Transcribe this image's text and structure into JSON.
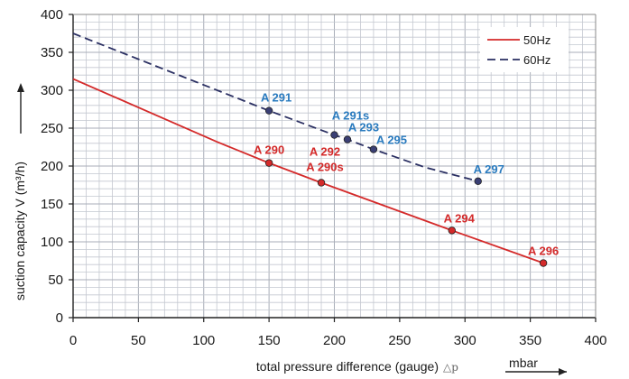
{
  "chart_data": {
    "type": "line",
    "xlabel": "total pressure difference (gauge)",
    "xlabel_symbol": "△p",
    "xunit": "mbar",
    "ylabel": "suction capacity V (m³/h)",
    "xlim": [
      0,
      400
    ],
    "ylim": [
      0,
      400
    ],
    "x_ticks": [
      0,
      50,
      100,
      150,
      200,
      250,
      300,
      350,
      400
    ],
    "y_ticks": [
      0,
      50,
      100,
      150,
      200,
      250,
      300,
      350,
      400
    ],
    "x_tick_labels": [
      "0",
      "50",
      "100",
      "150",
      "200",
      "250",
      "300",
      "350",
      "400"
    ],
    "y_tick_labels": [
      "0",
      "50",
      "100",
      "150",
      "200",
      "250",
      "300",
      "350",
      "400"
    ],
    "grid": true,
    "legend_position": "top-right",
    "series": [
      {
        "name": "50Hz",
        "color": "#d42a2a",
        "line_style": "solid",
        "curve": [
          [
            0,
            315
          ],
          [
            110,
            232
          ],
          [
            150,
            204
          ],
          [
            190,
            178
          ],
          [
            290,
            115
          ],
          [
            360,
            72
          ]
        ],
        "points": [
          {
            "x": 150,
            "y": 204,
            "label": "A 290"
          },
          {
            "x": 190,
            "y": 178,
            "label": "A 292\nA 290s"
          },
          {
            "x": 290,
            "y": 115,
            "label": "A 294"
          },
          {
            "x": 360,
            "y": 72,
            "label": "A 296"
          }
        ]
      },
      {
        "name": "60Hz",
        "color": "#2a2f62",
        "line_style": "dashed",
        "curve": [
          [
            0,
            375
          ],
          [
            150,
            273
          ],
          [
            200,
            241
          ],
          [
            210,
            235
          ],
          [
            230,
            222
          ],
          [
            270,
            198
          ],
          [
            310,
            180
          ]
        ],
        "points": [
          {
            "x": 150,
            "y": 273,
            "label": "A 291"
          },
          {
            "x": 200,
            "y": 241,
            "label": "A 291s"
          },
          {
            "x": 210,
            "y": 235,
            "label": "A 293"
          },
          {
            "x": 230,
            "y": 222,
            "label": "A 295"
          },
          {
            "x": 310,
            "y": 180,
            "label": "A 297"
          }
        ]
      }
    ],
    "point_label_color_60hz": "#2a7bbf"
  }
}
